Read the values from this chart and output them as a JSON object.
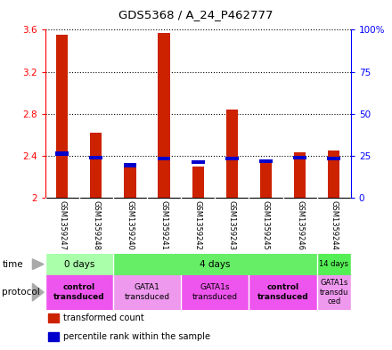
{
  "title": "GDS5368 / A_24_P462777",
  "samples": [
    "GSM1359247",
    "GSM1359248",
    "GSM1359240",
    "GSM1359241",
    "GSM1359242",
    "GSM1359243",
    "GSM1359245",
    "GSM1359246",
    "GSM1359244"
  ],
  "red_values": [
    3.55,
    2.62,
    2.31,
    3.57,
    2.3,
    2.84,
    2.33,
    2.43,
    2.45
  ],
  "blue_values": [
    2.42,
    2.38,
    2.31,
    2.37,
    2.34,
    2.37,
    2.35,
    2.38,
    2.37
  ],
  "ylim_left": [
    2.0,
    3.6
  ],
  "ylim_right": [
    0,
    100
  ],
  "yticks_left": [
    2.0,
    2.4,
    2.8,
    3.2,
    3.6
  ],
  "yticks_right": [
    0,
    25,
    50,
    75,
    100
  ],
  "ytick_labels_left": [
    "2",
    "2.4",
    "2.8",
    "3.2",
    "3.6"
  ],
  "ytick_labels_right": [
    "0",
    "25",
    "50",
    "75",
    "100%"
  ],
  "bar_color_red": "#cc2200",
  "bar_color_blue": "#0000cc",
  "time_groups": [
    {
      "label": "0 days",
      "start": 0,
      "end": 2,
      "color": "#aaffaa"
    },
    {
      "label": "4 days",
      "start": 2,
      "end": 8,
      "color": "#66ee66"
    },
    {
      "label": "14 days",
      "start": 8,
      "end": 9,
      "color": "#55ee55"
    }
  ],
  "protocol_groups": [
    {
      "label": "control\ntransduced",
      "start": 0,
      "end": 2,
      "color": "#ee55ee",
      "bold": true
    },
    {
      "label": "GATA1\ntransduced",
      "start": 2,
      "end": 4,
      "color": "#ee99ee",
      "bold": false
    },
    {
      "label": "GATA1s\ntransduced",
      "start": 4,
      "end": 6,
      "color": "#ee55ee",
      "bold": false
    },
    {
      "label": "control\ntransduced",
      "start": 6,
      "end": 8,
      "color": "#ee55ee",
      "bold": true
    },
    {
      "label": "GATA1s\ntransdu\nced",
      "start": 8,
      "end": 9,
      "color": "#ee99ee",
      "bold": false
    }
  ],
  "legend_items": [
    {
      "color": "#cc2200",
      "label": "transformed count"
    },
    {
      "color": "#0000cc",
      "label": "percentile rank within the sample"
    }
  ]
}
